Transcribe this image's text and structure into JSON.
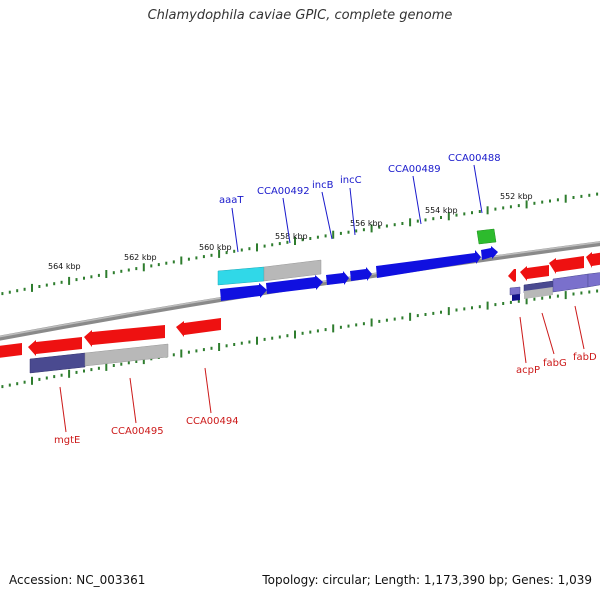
{
  "title": "Chlamydophila caviae GPIC, complete genome",
  "footer": {
    "accession": "Accession: NC_003361",
    "summary": "Topology: circular; Length: 1,173,390 bp; Genes: 1,039"
  },
  "colors": {
    "backbone": "#8a8a8a",
    "tick": "#2e7d2e",
    "gene_forward": "#1010e0",
    "gene_reverse": "#ee1111",
    "cds_forward": "#30d8e8",
    "cds_gray": "#b8b8b8",
    "cds_purple": "#4a4a90",
    "cds_purple_light": "#7a70cc",
    "cds_green": "#2dbb2d",
    "label_forward": "#1a1acc",
    "label_reverse": "#cc1a1a"
  },
  "kbp_labels": [
    "564 kbp",
    "562 kbp",
    "560 kbp",
    "558 kbp",
    "556 kbp",
    "554 kbp",
    "552 kbp"
  ],
  "forward_gene_labels": [
    "aaaT",
    "CCA00492",
    "incB",
    "incC",
    "CCA00489",
    "CCA00488"
  ],
  "reverse_gene_labels": [
    "mgtE",
    "CCA00495",
    "CCA00494",
    "acpP",
    "fabG",
    "fabD"
  ]
}
